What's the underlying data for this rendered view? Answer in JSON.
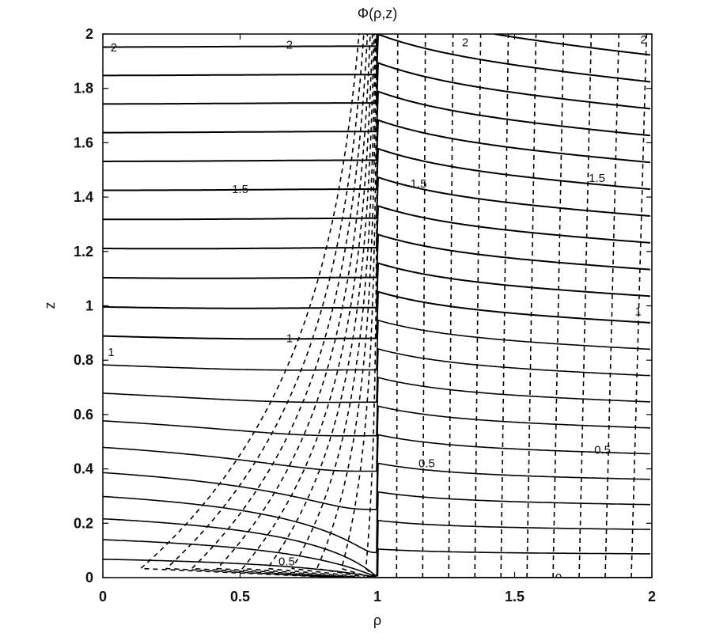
{
  "chart_data": {
    "type": "contour",
    "title": "Φ(ρ,z)",
    "xlabel": "ρ",
    "ylabel": "z",
    "xlim": [
      0,
      2
    ],
    "ylim": [
      0,
      2
    ],
    "x_ticks": [
      0,
      0.5,
      1,
      1.5,
      2
    ],
    "x_tick_labels": [
      "0",
      "0.5",
      "1",
      "1.5",
      "2"
    ],
    "y_ticks": [
      0,
      0.2,
      0.4,
      0.6,
      0.8,
      1,
      1.2,
      1.4,
      1.6,
      1.8,
      2
    ],
    "y_tick_labels": [
      "0",
      "0.2",
      "0.4",
      "0.6",
      "0.8",
      "1",
      "1.2",
      "1.4",
      "1.6",
      "1.8",
      "2"
    ],
    "grid": false,
    "series": [
      {
        "style": "solid",
        "levels": [
          0,
          0.1,
          0.2,
          0.3,
          0.4,
          0.5,
          0.6,
          0.7,
          0.8,
          0.9,
          1,
          1.1,
          1.2,
          1.3,
          1.4,
          1.5,
          1.6,
          1.7,
          1.8,
          1.9,
          2
        ]
      },
      {
        "style": "dashed",
        "curves": 20
      }
    ],
    "contour_labels": [
      {
        "text": "2",
        "x": 0.04,
        "y": 1.95
      },
      {
        "text": "2",
        "x": 0.68,
        "y": 1.96
      },
      {
        "text": "2",
        "x": 1.32,
        "y": 1.97
      },
      {
        "text": "2",
        "x": 1.97,
        "y": 1.98
      },
      {
        "text": "1.5",
        "x": 0.5,
        "y": 1.43
      },
      {
        "text": "1.5",
        "x": 1.15,
        "y": 1.45
      },
      {
        "text": "1.5",
        "x": 1.8,
        "y": 1.47
      },
      {
        "text": "1",
        "x": 0.03,
        "y": 0.83
      },
      {
        "text": "1",
        "x": 0.68,
        "y": 0.88
      },
      {
        "text": "1",
        "x": 1.95,
        "y": 0.98
      },
      {
        "text": "0.5",
        "x": 1.18,
        "y": 0.42
      },
      {
        "text": "0.5",
        "x": 1.82,
        "y": 0.47
      },
      {
        "text": "0.5",
        "x": 0.67,
        "y": 0.06
      },
      {
        "text": "0",
        "x": 1.66,
        "y": 0.0
      }
    ]
  }
}
